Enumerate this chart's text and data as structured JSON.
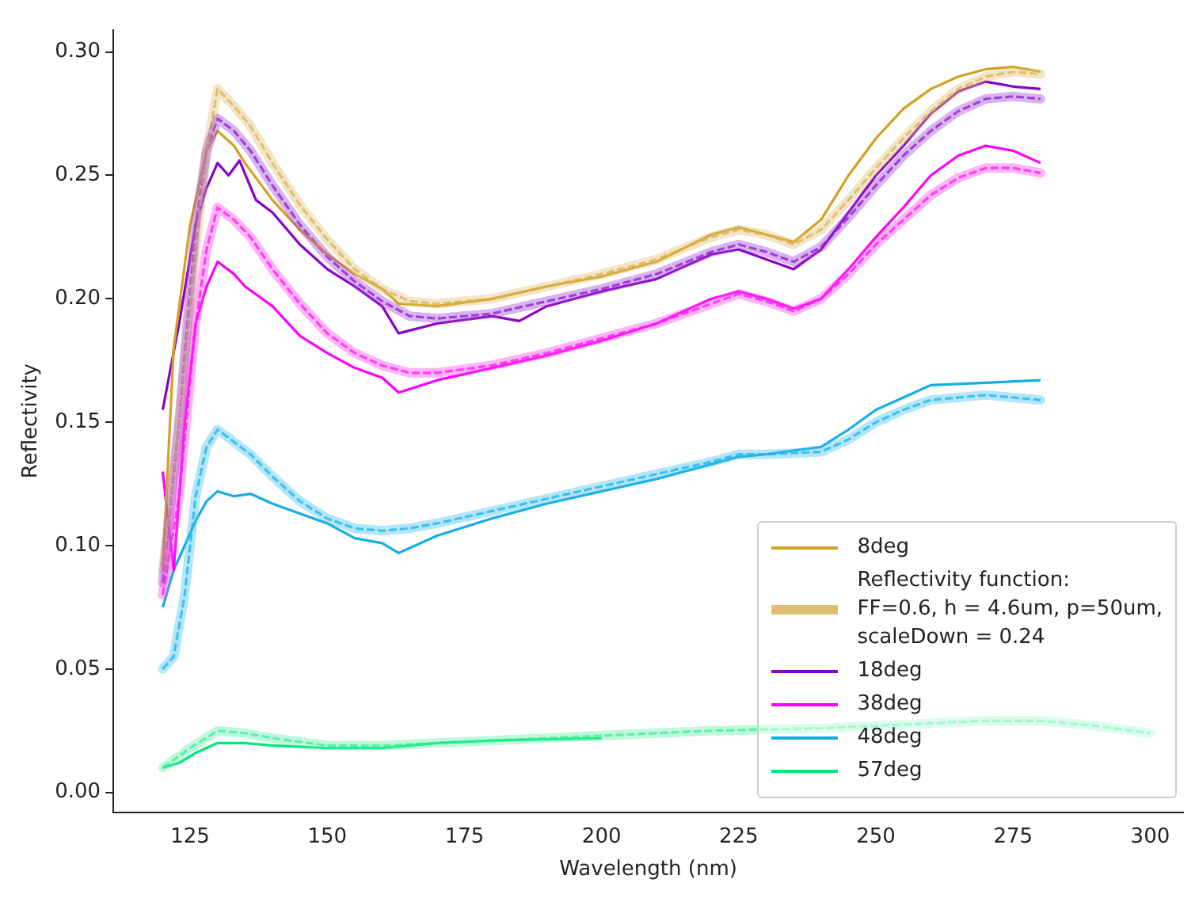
{
  "chart_data": {
    "type": "line",
    "xlabel": "Wavelength (nm)",
    "ylabel": "Reflectivity",
    "xlim": [
      111,
      306
    ],
    "ylim": [
      -0.008,
      0.309
    ],
    "xticks": [
      125,
      150,
      175,
      200,
      225,
      250,
      275,
      300
    ],
    "yticks": [
      {
        "value": 0,
        "label": "0.00"
      },
      {
        "value": 0.05,
        "label": "0.05"
      },
      {
        "value": 0.1,
        "label": "0.10"
      },
      {
        "value": 0.15,
        "label": "0.15"
      },
      {
        "value": 0.2,
        "label": "0.20"
      },
      {
        "value": 0.25,
        "label": "0.25"
      },
      {
        "value": 0.3,
        "label": "0.30"
      }
    ],
    "grid": false,
    "legend": "bottom right",
    "marker": "none",
    "series": [
      {
        "name": "8deg",
        "color": "#d4a020",
        "line_style": "solid",
        "x": [
          120,
          122,
          125,
          128,
          130,
          133,
          135,
          140,
          145,
          150,
          155,
          160,
          163,
          170,
          180,
          190,
          200,
          210,
          220,
          225,
          230,
          235,
          240,
          245,
          250,
          255,
          260,
          265,
          270,
          275,
          280
        ],
        "values": [
          0.09,
          0.18,
          0.23,
          0.26,
          0.268,
          0.262,
          0.255,
          0.24,
          0.228,
          0.218,
          0.21,
          0.204,
          0.198,
          0.197,
          0.2,
          0.205,
          0.209,
          0.215,
          0.226,
          0.229,
          0.226,
          0.223,
          0.232,
          0.25,
          0.265,
          0.277,
          0.285,
          0.29,
          0.293,
          0.294,
          0.292
        ]
      },
      {
        "name": "Reflectivity function:\nFF=0.6, h = 4.6um, p=50um,\nscaleDown = 0.24",
        "color": "#e0c070",
        "line_style": "dashed",
        "x": [
          120,
          123,
          126,
          128,
          130,
          133,
          136,
          140,
          145,
          150,
          155,
          160,
          165,
          170,
          180,
          190,
          200,
          210,
          220,
          225,
          230,
          235,
          240,
          245,
          250,
          255,
          260,
          265,
          270,
          275,
          280
        ],
        "values": [
          0.09,
          0.15,
          0.22,
          0.26,
          0.285,
          0.278,
          0.27,
          0.255,
          0.238,
          0.224,
          0.212,
          0.204,
          0.199,
          0.198,
          0.2,
          0.205,
          0.21,
          0.216,
          0.225,
          0.228,
          0.226,
          0.222,
          0.228,
          0.24,
          0.253,
          0.265,
          0.276,
          0.285,
          0.29,
          0.292,
          0.291
        ]
      },
      {
        "name": "18deg",
        "color": "#8a00c8",
        "line_style": "solid",
        "x": [
          120,
          123,
          126,
          128,
          130,
          132,
          134,
          137,
          140,
          145,
          150,
          155,
          160,
          163,
          170,
          180,
          185,
          190,
          200,
          210,
          220,
          225,
          230,
          235,
          240,
          245,
          250,
          255,
          260,
          265,
          270,
          275,
          280
        ],
        "values": [
          0.155,
          0.19,
          0.23,
          0.245,
          0.255,
          0.25,
          0.256,
          0.24,
          0.235,
          0.222,
          0.212,
          0.205,
          0.197,
          0.186,
          0.19,
          0.193,
          0.191,
          0.197,
          0.203,
          0.208,
          0.218,
          0.22,
          0.216,
          0.212,
          0.22,
          0.235,
          0.25,
          0.262,
          0.275,
          0.284,
          0.288,
          0.286,
          0.285
        ]
      },
      {
        "color": "#a040d8",
        "line_style": "dashed",
        "x": [
          120,
          123,
          126,
          128,
          130,
          133,
          136,
          140,
          145,
          150,
          155,
          160,
          165,
          170,
          180,
          190,
          200,
          210,
          220,
          225,
          230,
          235,
          240,
          245,
          250,
          255,
          260,
          265,
          270,
          275,
          280
        ],
        "values": [
          0.085,
          0.15,
          0.23,
          0.26,
          0.273,
          0.268,
          0.26,
          0.246,
          0.23,
          0.217,
          0.207,
          0.199,
          0.193,
          0.192,
          0.194,
          0.199,
          0.204,
          0.21,
          0.219,
          0.222,
          0.219,
          0.215,
          0.221,
          0.233,
          0.246,
          0.258,
          0.268,
          0.276,
          0.281,
          0.282,
          0.281
        ]
      },
      {
        "name": "38deg",
        "color": "#ff00ff",
        "line_style": "solid",
        "x": [
          120,
          122,
          124,
          126,
          128,
          130,
          133,
          135,
          140,
          145,
          150,
          155,
          160,
          163,
          170,
          180,
          190,
          200,
          210,
          220,
          225,
          230,
          235,
          240,
          245,
          250,
          255,
          260,
          265,
          270,
          275,
          280
        ],
        "values": [
          0.13,
          0.09,
          0.15,
          0.19,
          0.205,
          0.215,
          0.21,
          0.205,
          0.197,
          0.185,
          0.178,
          0.172,
          0.168,
          0.162,
          0.167,
          0.172,
          0.177,
          0.183,
          0.19,
          0.2,
          0.203,
          0.2,
          0.196,
          0.2,
          0.212,
          0.225,
          0.237,
          0.25,
          0.258,
          0.262,
          0.26,
          0.255
        ]
      },
      {
        "color": "#ff40f0",
        "line_style": "dashed",
        "x": [
          120,
          123,
          126,
          128,
          130,
          133,
          136,
          140,
          145,
          150,
          155,
          160,
          165,
          170,
          180,
          190,
          200,
          210,
          220,
          225,
          230,
          235,
          240,
          245,
          250,
          255,
          260,
          265,
          270,
          275,
          280
        ],
        "values": [
          0.08,
          0.12,
          0.19,
          0.22,
          0.237,
          0.232,
          0.225,
          0.212,
          0.198,
          0.186,
          0.178,
          0.173,
          0.17,
          0.17,
          0.173,
          0.178,
          0.184,
          0.19,
          0.198,
          0.202,
          0.199,
          0.195,
          0.2,
          0.21,
          0.222,
          0.232,
          0.242,
          0.249,
          0.253,
          0.253,
          0.251
        ]
      },
      {
        "name": "48deg",
        "color": "#14aee6",
        "line_style": "solid",
        "x": [
          120,
          122,
          124,
          126,
          128,
          130,
          133,
          136,
          140,
          145,
          150,
          155,
          160,
          163,
          170,
          180,
          190,
          200,
          210,
          220,
          225,
          230,
          240,
          245,
          250,
          255,
          260,
          270,
          280
        ],
        "values": [
          0.075,
          0.09,
          0.1,
          0.11,
          0.118,
          0.122,
          0.12,
          0.121,
          0.117,
          0.113,
          0.109,
          0.103,
          0.101,
          0.097,
          0.104,
          0.111,
          0.117,
          0.122,
          0.127,
          0.133,
          0.136,
          0.137,
          0.14,
          0.147,
          0.155,
          0.16,
          0.165,
          0.166,
          0.167
        ]
      },
      {
        "color": "#40c0f0",
        "line_style": "dashed",
        "x": [
          120,
          122,
          124,
          126,
          128,
          130,
          133,
          136,
          140,
          145,
          150,
          155,
          160,
          165,
          170,
          180,
          190,
          200,
          210,
          220,
          225,
          230,
          240,
          245,
          250,
          255,
          260,
          270,
          280
        ],
        "values": [
          0.05,
          0.055,
          0.08,
          0.12,
          0.14,
          0.147,
          0.142,
          0.137,
          0.128,
          0.118,
          0.111,
          0.107,
          0.106,
          0.107,
          0.109,
          0.114,
          0.119,
          0.124,
          0.129,
          0.134,
          0.137,
          0.137,
          0.138,
          0.143,
          0.15,
          0.155,
          0.159,
          0.161,
          0.159
        ]
      },
      {
        "name": "57deg",
        "color": "#00e878",
        "line_style": "solid",
        "x": [
          120,
          123,
          126,
          128,
          130,
          135,
          140,
          150,
          160,
          170,
          180,
          200
        ],
        "values": [
          0.01,
          0.012,
          0.016,
          0.018,
          0.02,
          0.02,
          0.019,
          0.018,
          0.018,
          0.02,
          0.021,
          0.022
        ]
      },
      {
        "color": "#60f0a8",
        "line_style": "dashed",
        "x": [
          120,
          125,
          130,
          135,
          140,
          150,
          160,
          170,
          180,
          200,
          220,
          240,
          260,
          270,
          280,
          290,
          300
        ],
        "values": [
          0.01,
          0.018,
          0.025,
          0.024,
          0.022,
          0.019,
          0.019,
          0.02,
          0.021,
          0.023,
          0.025,
          0.026,
          0.028,
          0.029,
          0.029,
          0.027,
          0.024
        ]
      }
    ]
  }
}
